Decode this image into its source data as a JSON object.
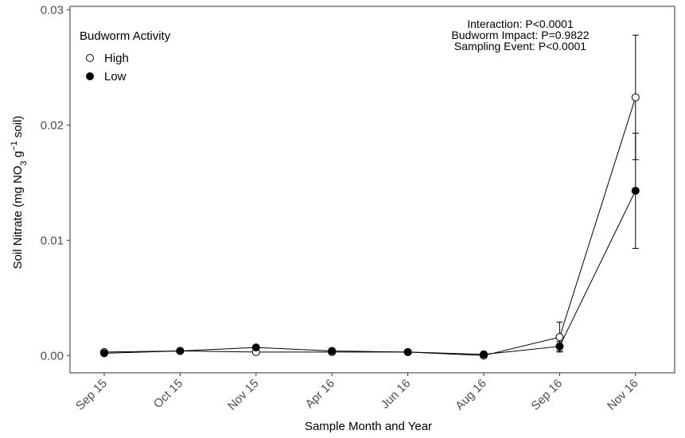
{
  "chart_data": {
    "type": "line",
    "xlabel": "Sample Month and Year",
    "ylabel": {
      "prefix": "Soil Nitrate (mg NO",
      "sub": "3",
      "mid": " g",
      "sup": "−1",
      "suffix": " soil)"
    },
    "ylim": [
      -0.0015,
      0.0303
    ],
    "yticks": [
      0.0,
      0.01,
      0.02,
      0.03
    ],
    "ytick_labels": [
      "0.00",
      "0.01",
      "0.02",
      "0.03"
    ],
    "categories": [
      "Sep 15",
      "Oct 15",
      "Nov 15",
      "Apr 16",
      "Jun 16",
      "Aug 16",
      "Sep 16",
      "Nov 16"
    ],
    "grid": false,
    "legend": {
      "title": "Budworm Activity",
      "position": "top-left"
    },
    "annotations": [
      "Interaction: P<0.0001",
      "Budworm Impact: P=0.9822",
      "Sampling Event: P<0.0001"
    ],
    "series": [
      {
        "name": "High",
        "marker": "open-circle",
        "values": [
          0.0003,
          0.0004,
          0.0003,
          0.0003,
          0.0003,
          0.0,
          0.0016,
          0.0224
        ],
        "errors": [
          0.0001,
          0.0001,
          0.0001,
          0.0001,
          0.0001,
          0.0001,
          0.0013,
          0.0054
        ]
      },
      {
        "name": "Low",
        "marker": "filled-circle",
        "values": [
          0.0002,
          0.0004,
          0.0007,
          0.0004,
          0.0003,
          0.0001,
          0.0008,
          0.0143
        ],
        "errors": [
          0.0001,
          0.0001,
          0.0002,
          0.0001,
          0.0001,
          0.0001,
          0.0004,
          0.005
        ]
      }
    ],
    "colors": {
      "line": "#000000",
      "open_fill": "#ffffff",
      "filled": "#000000",
      "tick_text": "#4d4d4d"
    }
  }
}
